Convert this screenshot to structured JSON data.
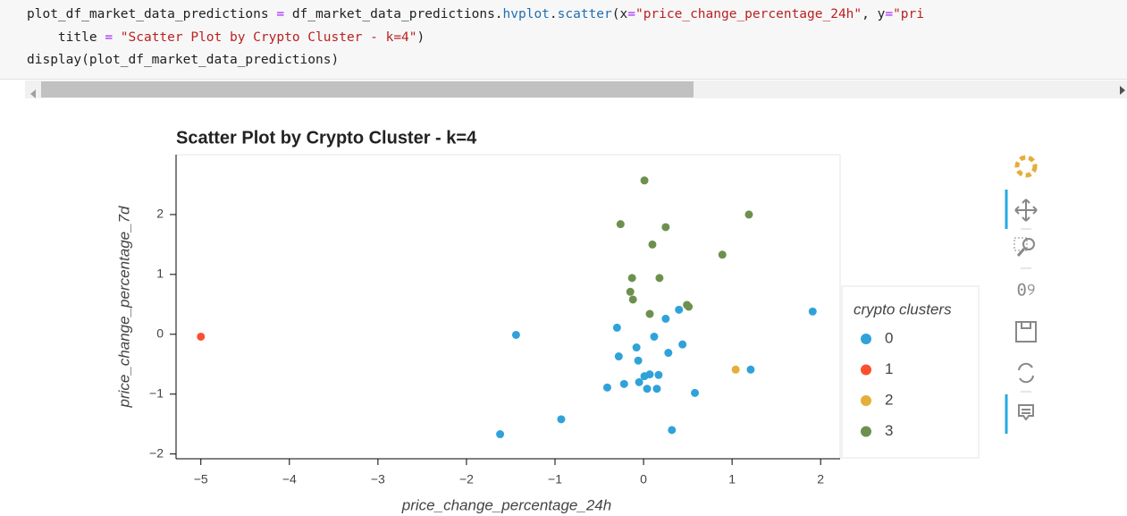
{
  "code": {
    "lines": [
      [
        "plot_df_market_data_predictions ",
        "=",
        " df_market_data_predictions.",
        "hvplot",
        ".",
        "scatter",
        "(x",
        "=",
        "\"price_change_percentage_24h\"",
        ", y",
        "=",
        "\"pri"
      ],
      [
        "    title ",
        "=",
        " ",
        "\"Scatter Plot by Crypto Cluster - k=4\"",
        ")"
      ],
      [
        "display(plot_df_market_data_predictions)"
      ]
    ]
  },
  "chart_data": {
    "type": "scatter",
    "title": "Scatter Plot by Crypto Cluster - k=4",
    "x_label": "price_change_percentage_24h",
    "y_label": "price_change_percentage_7d",
    "legend_title": "crypto clusters",
    "legend": "right",
    "xlim": [
      -5.28,
      2.22
    ],
    "ylim": [
      -2.08,
      3.0
    ],
    "xticks": [
      {
        "value": -5,
        "label": "−5"
      },
      {
        "value": -4,
        "label": "−4"
      },
      {
        "value": -3,
        "label": "−3"
      },
      {
        "value": -2,
        "label": "−2"
      },
      {
        "value": -1,
        "label": "−1"
      },
      0,
      1,
      2
    ],
    "yticks": [
      {
        "value": -2,
        "label": "−2"
      },
      {
        "value": -1,
        "label": "−1"
      },
      0,
      1,
      2
    ],
    "series": [
      {
        "name": "0",
        "color": "#30a2da",
        "x": [
          -1.44,
          -1.62,
          -0.93,
          -0.3,
          -0.28,
          -0.22,
          -0.41,
          -0.08,
          -0.06,
          -0.05,
          0.01,
          0.07,
          0.17,
          0.04,
          0.15,
          0.12,
          0.25,
          0.28,
          0.4,
          0.44,
          0.58,
          0.32,
          1.21,
          1.91
        ],
        "values": [
          -0.01,
          -1.67,
          -1.42,
          0.11,
          -0.37,
          -0.83,
          -0.89,
          -0.22,
          -0.44,
          -0.8,
          -0.7,
          -0.67,
          -0.68,
          -0.91,
          -0.91,
          -0.04,
          0.26,
          -0.31,
          0.41,
          -0.17,
          -0.98,
          -1.6,
          -0.59,
          0.38
        ]
      },
      {
        "name": "1",
        "color": "#fc4f30",
        "x": [
          -5.0
        ],
        "values": [
          -0.04
        ]
      },
      {
        "name": "2",
        "color": "#e5ae38",
        "x": [
          1.04
        ],
        "values": [
          -0.59
        ]
      },
      {
        "name": "3",
        "color": "#6d904f",
        "x": [
          0.01,
          -0.26,
          0.25,
          1.19,
          0.1,
          0.89,
          -0.13,
          0.18,
          -0.15,
          -0.12,
          0.07,
          0.49,
          0.51
        ],
        "values": [
          2.57,
          1.84,
          1.79,
          2.0,
          1.5,
          1.33,
          0.94,
          0.94,
          0.71,
          0.58,
          0.34,
          0.49,
          0.46
        ]
      }
    ]
  }
}
